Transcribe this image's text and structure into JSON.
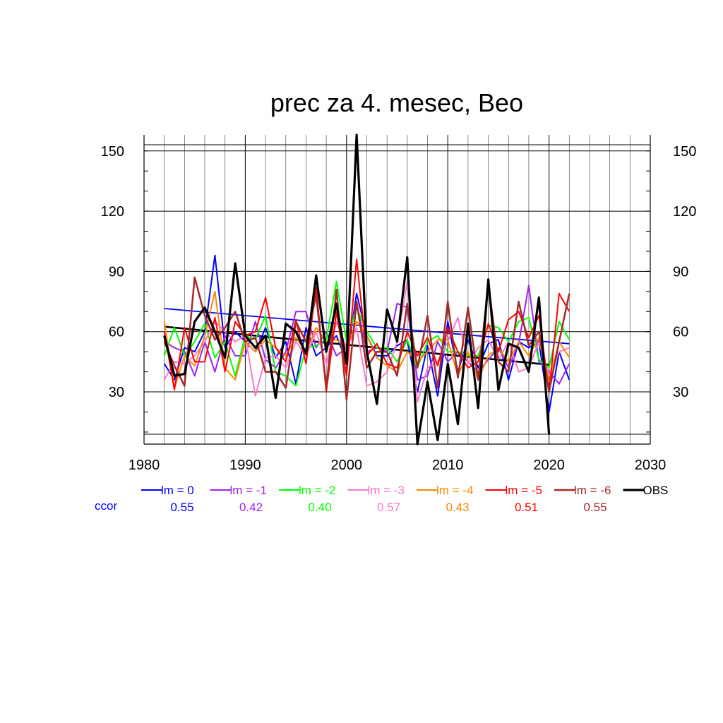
{
  "chart_data": {
    "type": "line",
    "title": "prec za 4. mesec, Beo",
    "xlabel": "",
    "ylabel": "",
    "xlim": [
      1980,
      2030
    ],
    "ylim": [
      4,
      158
    ],
    "x_ticks": [
      1980,
      1990,
      2000,
      2010,
      2020,
      2030
    ],
    "x_tick_labels": [
      "1980",
      "1990",
      "2000",
      "2010",
      "2020",
      "2030"
    ],
    "y_ticks": [
      30,
      60,
      90,
      120,
      150
    ],
    "y_tick_labels": [
      "30",
      "60",
      "90",
      "120",
      "150"
    ],
    "grid": true,
    "legend_position": "below",
    "ccor_label": "ccor",
    "x": [
      1982,
      1983,
      1984,
      1985,
      1986,
      1987,
      1988,
      1989,
      1990,
      1991,
      1992,
      1993,
      1994,
      1995,
      1996,
      1997,
      1998,
      1999,
      2000,
      2001,
      2002,
      2003,
      2004,
      2005,
      2006,
      2007,
      2008,
      2009,
      2010,
      2011,
      2012,
      2013,
      2014,
      2015,
      2016,
      2017,
      2018,
      2019,
      2020,
      2021,
      2022
    ],
    "series": [
      {
        "name": "lm = 0",
        "ccor": "0.55",
        "color": "#0000ff",
        "stroke": 2,
        "values": [
          44,
          36,
          52,
          50,
          60,
          98,
          52,
          60,
          55,
          50,
          62,
          47,
          55,
          34,
          62,
          48,
          52,
          58,
          45,
          79,
          58,
          48,
          48,
          53,
          56,
          30,
          53,
          28,
          65,
          40,
          56,
          42,
          54,
          56,
          36,
          55,
          52,
          55,
          20,
          50,
          36
        ]
      },
      {
        "name": "lm = -1",
        "ccor": "0.42",
        "color": "#a020f0",
        "stroke": 2,
        "values": [
          55,
          52,
          50,
          38,
          55,
          40,
          58,
          48,
          48,
          65,
          46,
          42,
          50,
          70,
          70,
          52,
          60,
          48,
          52,
          74,
          50,
          52,
          50,
          74,
          72,
          36,
          38,
          55,
          45,
          50,
          45,
          40,
          46,
          52,
          42,
          54,
          83,
          45,
          40,
          34,
          44
        ]
      },
      {
        "name": "lm = -2",
        "ccor": "0.40",
        "color": "#00ff00",
        "stroke": 2,
        "values": [
          48,
          62,
          48,
          55,
          64,
          47,
          55,
          38,
          58,
          56,
          68,
          40,
          38,
          33,
          52,
          53,
          56,
          85,
          55,
          72,
          60,
          52,
          52,
          45,
          56,
          42,
          55,
          58,
          50,
          50,
          48,
          48,
          63,
          62,
          55,
          65,
          67,
          46,
          42,
          65,
          56
        ]
      },
      {
        "name": "lm = -3",
        "ccor": "0.57",
        "color": "#ff77cc",
        "stroke": 2,
        "values": [
          36,
          45,
          44,
          48,
          55,
          65,
          60,
          55,
          58,
          28,
          47,
          48,
          42,
          55,
          48,
          60,
          44,
          65,
          52,
          62,
          33,
          35,
          40,
          55,
          85,
          25,
          42,
          45,
          55,
          67,
          44,
          52,
          56,
          46,
          55,
          40,
          42,
          55,
          38,
          50,
          52
        ]
      },
      {
        "name": "lm = -4",
        "ccor": "0.43",
        "color": "#ff8800",
        "stroke": 2,
        "values": [
          65,
          32,
          48,
          43,
          58,
          80,
          42,
          36,
          55,
          50,
          56,
          52,
          48,
          57,
          50,
          62,
          55,
          56,
          52,
          65,
          58,
          47,
          43,
          40,
          50,
          45,
          50,
          56,
          56,
          38,
          50,
          36,
          48,
          52,
          45,
          55,
          48,
          57,
          35,
          55,
          47
        ]
      },
      {
        "name": "lm = -5",
        "ccor": "0.51",
        "color": "#ff0000",
        "stroke": 2,
        "values": [
          60,
          31,
          62,
          45,
          45,
          67,
          40,
          65,
          58,
          60,
          77,
          52,
          45,
          66,
          44,
          82,
          30,
          70,
          38,
          96,
          48,
          54,
          44,
          42,
          60,
          48,
          57,
          43,
          62,
          50,
          42,
          45,
          64,
          50,
          66,
          70,
          57,
          68,
          30,
          79,
          70
        ]
      },
      {
        "name": "lm = -6",
        "ccor": "0.55",
        "color": "#a52a2a",
        "stroke": 2.5,
        "values": [
          55,
          43,
          33,
          87,
          68,
          56,
          62,
          70,
          55,
          57,
          40,
          40,
          32,
          65,
          55,
          78,
          32,
          81,
          26,
          75,
          42,
          50,
          50,
          38,
          74,
          42,
          68,
          32,
          75,
          37,
          72,
          36,
          84,
          45,
          40,
          75,
          53,
          60,
          30,
          55,
          79
        ]
      },
      {
        "name": "OBS",
        "ccor": "",
        "color": "#000000",
        "stroke": 3.2,
        "values": [
          58,
          38,
          39,
          65,
          72,
          60,
          47,
          94,
          58,
          52,
          58,
          27,
          64,
          60,
          49,
          88,
          50,
          74,
          44,
          158,
          50,
          24,
          71,
          55,
          97,
          4,
          35,
          6,
          44,
          14,
          64,
          22,
          86,
          31,
          54,
          52,
          40,
          77,
          9,
          null,
          null
        ]
      }
    ],
    "trend_lines": [
      {
        "series": "lm = 0",
        "color": "#0000ff",
        "x": [
          1982,
          2022
        ],
        "y": [
          71.5,
          54.0
        ]
      },
      {
        "series": "OBS",
        "color": "#000000",
        "x": [
          1982,
          2020
        ],
        "y": [
          62.5,
          43.5
        ]
      }
    ]
  }
}
